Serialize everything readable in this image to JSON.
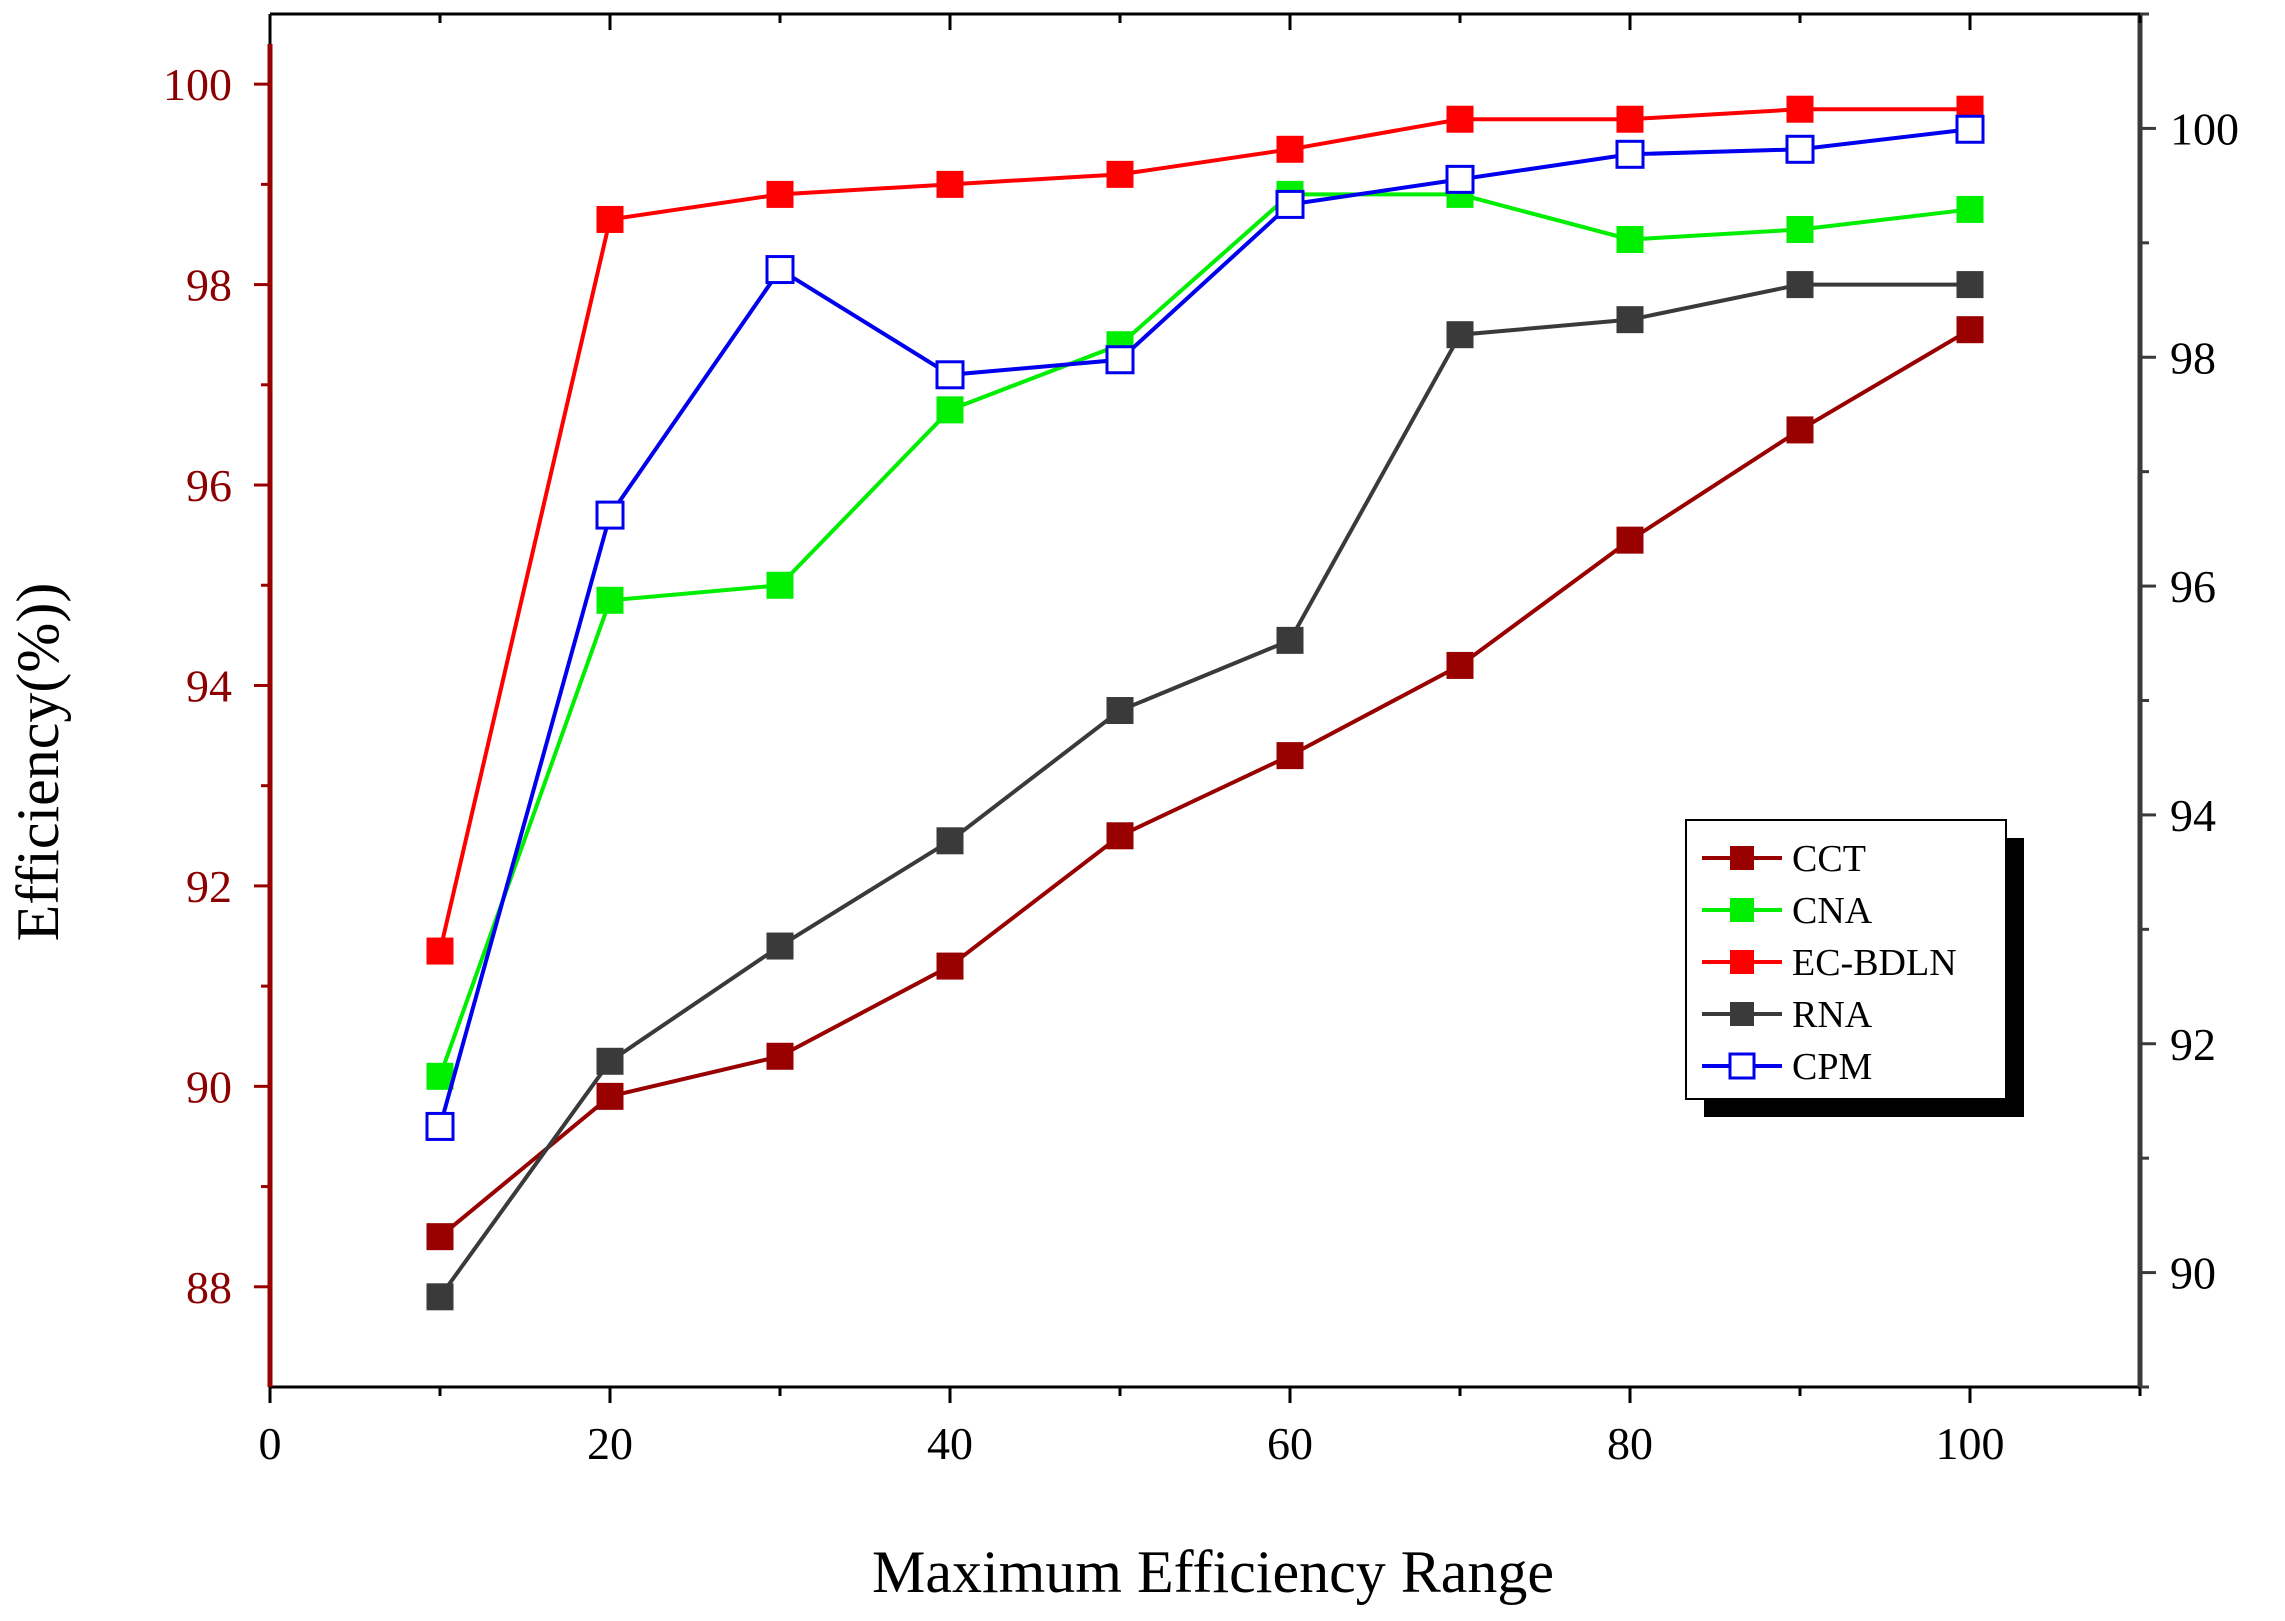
{
  "chart_data": {
    "type": "line",
    "title": "",
    "xlabel": "Maximum Efficiency Range",
    "ylabel": "Efficiency(%))",
    "xlim": [
      0,
      110
    ],
    "ylim_left": [
      87,
      100.7
    ],
    "ylim_right": [
      89,
      101
    ],
    "x_ticks": [
      "0",
      "20",
      "40",
      "60",
      "80",
      "100"
    ],
    "y_ticks_left": [
      "88",
      "90",
      "92",
      "94",
      "96",
      "98",
      "100"
    ],
    "y_ticks_right": [
      "90",
      "92",
      "94",
      "96",
      "98",
      "100"
    ],
    "x": [
      10,
      20,
      30,
      40,
      50,
      60,
      70,
      80,
      90,
      100
    ],
    "legend_position": "right",
    "series": [
      {
        "name": "CCT",
        "color": "#990000",
        "marker": "filled-square",
        "values": [
          88.5,
          89.9,
          90.3,
          91.2,
          92.5,
          93.3,
          94.2,
          95.45,
          96.55,
          97.55
        ]
      },
      {
        "name": "CNA",
        "color": "#00ee00",
        "marker": "filled-square",
        "values": [
          90.1,
          94.85,
          95.0,
          96.75,
          97.4,
          98.9,
          98.9,
          98.45,
          98.55,
          98.75
        ]
      },
      {
        "name": "EC-BDLN",
        "color": "#ff0000",
        "marker": "filled-square",
        "values": [
          91.35,
          98.65,
          98.9,
          99.0,
          99.1,
          99.35,
          99.65,
          99.65,
          99.75,
          99.75
        ]
      },
      {
        "name": "RNA",
        "color": "#3a3a3a",
        "marker": "filled-square",
        "values": [
          87.9,
          90.25,
          91.4,
          92.45,
          93.75,
          94.45,
          97.5,
          97.65,
          98.0,
          98.0
        ]
      },
      {
        "name": "CPM",
        "color": "#0000ee",
        "marker": "hollow-square",
        "values": [
          89.6,
          95.7,
          98.15,
          97.1,
          97.25,
          98.8,
          99.05,
          99.3,
          99.35,
          99.55
        ]
      }
    ],
    "colors": {
      "left_axis": "#990000",
      "right_axis": "#3a3a3a",
      "frame": "#000000",
      "left_tick_text": "#8b0000"
    }
  }
}
